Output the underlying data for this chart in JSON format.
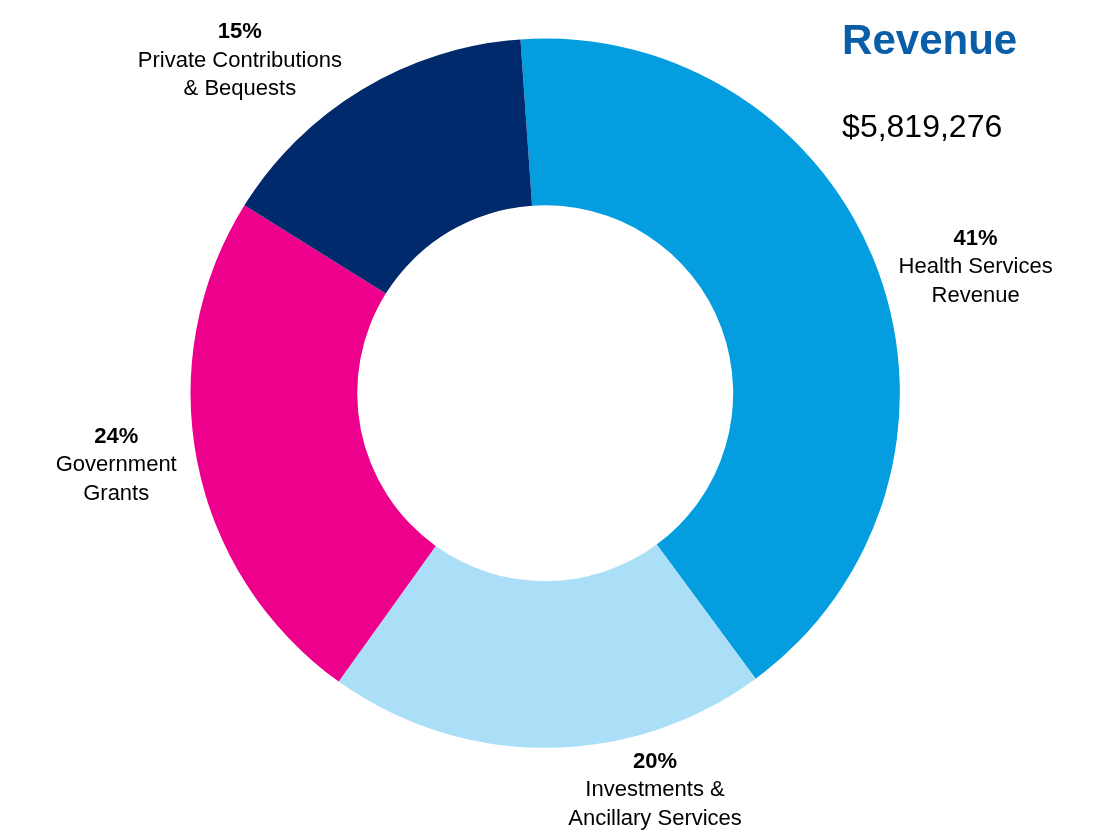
{
  "chart_data": {
    "type": "donut",
    "title": "Revenue",
    "subtitle": "$5,819,276",
    "categories": [
      "Health Services\nRevenue",
      "Investments &\nAncillary Services",
      "Government\nGrants",
      "Private Contributions\n& Bequests"
    ],
    "values": [
      41,
      20,
      24,
      15
    ],
    "value_labels": [
      "41%",
      "20%",
      "24%",
      "15%"
    ],
    "colors": [
      "#039de0",
      "#aadff7",
      "#ec008c",
      "#002a6c"
    ],
    "legend": false
  }
}
